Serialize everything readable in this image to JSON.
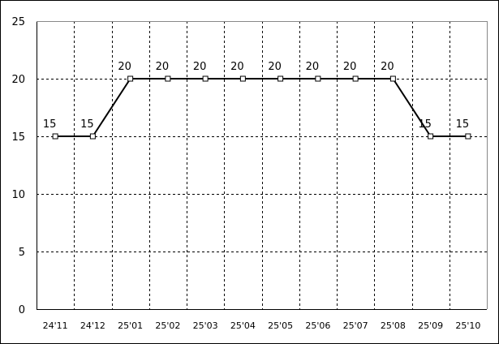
{
  "chart_data": {
    "type": "line",
    "categories": [
      "24'11",
      "24'12",
      "25'01",
      "25'02",
      "25'03",
      "25'04",
      "25'05",
      "25'06",
      "25'07",
      "25'08",
      "25'09",
      "25'10"
    ],
    "series": [
      {
        "values": [
          15,
          15,
          20,
          20,
          20,
          20,
          20,
          20,
          20,
          20,
          15,
          15
        ],
        "color": "#000000",
        "marker": "square"
      }
    ],
    "data_labels": true,
    "ylim": [
      0,
      25
    ],
    "yticks": [
      0,
      5,
      10,
      15,
      20,
      25
    ],
    "grid": true,
    "grid_style": "dashed",
    "title": "",
    "xlabel": "",
    "ylabel": ""
  }
}
